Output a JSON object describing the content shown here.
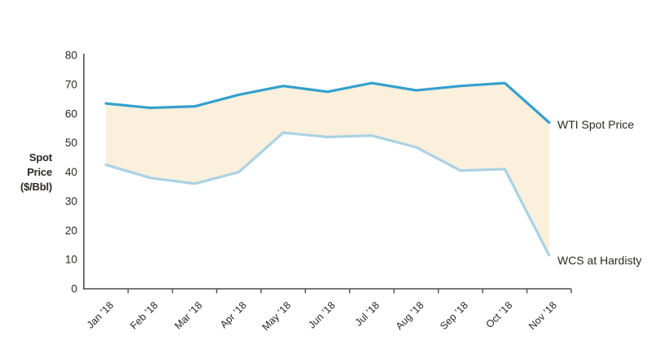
{
  "chart_data": {
    "type": "line",
    "title": "",
    "xlabel": "",
    "ylabel": "Spot Price ($/Bbl)",
    "ylabel_lines": [
      "Spot",
      "Price",
      "($/Bbl)"
    ],
    "ylim": [
      0,
      80
    ],
    "yticks": [
      0,
      10,
      20,
      30,
      40,
      50,
      60,
      70,
      80
    ],
    "grid": false,
    "legend_position": "end-of-line-labels",
    "categories": [
      "Jan ’18",
      "Feb ’18",
      "Mar ’18",
      "Apr ’18",
      "May ’18",
      "Jun ’18",
      "Jul ’18",
      "Aug ’18",
      "Sep ’18",
      "Oct ’18",
      "Nov ’18"
    ],
    "series": [
      {
        "name": "WTI Spot Price",
        "values": [
          63.5,
          62,
          62.5,
          66.5,
          69.5,
          67.5,
          70.5,
          68,
          69.5,
          70.5,
          57
        ],
        "color": "#339fce"
      },
      {
        "name": "WCS at Hardisty",
        "values": [
          42.5,
          38,
          36,
          40,
          53.5,
          52,
          52.5,
          48.5,
          40.5,
          41,
          11.5
        ],
        "color": "#aad2e2"
      }
    ],
    "band_fill_color": "#faf0dc",
    "axis_color": "#4d4d4f",
    "text_color": "#2b2724"
  }
}
